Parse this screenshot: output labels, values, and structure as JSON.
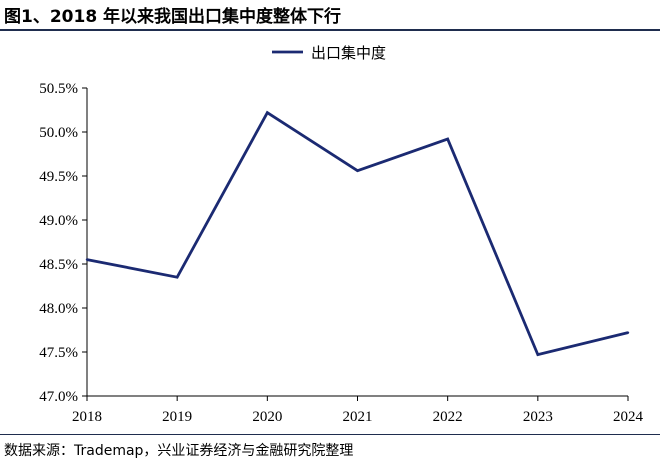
{
  "page": {
    "title": "图1、2018 年以来我国出口集中度整体下行",
    "source": "数据来源：Trademap，兴业证券经济与金融研究院整理"
  },
  "chart_data": {
    "type": "line",
    "x": [
      "2018",
      "2019",
      "2020",
      "2021",
      "2022",
      "2023",
      "2024"
    ],
    "series": [
      {
        "name": "出口集中度",
        "color": "#1b2a72",
        "values": [
          48.55,
          48.35,
          50.22,
          49.56,
          49.92,
          47.47,
          47.72
        ]
      }
    ],
    "ylim": [
      47.0,
      50.5
    ],
    "yticks": [
      "47.0%",
      "47.5%",
      "48.0%",
      "48.5%",
      "49.0%",
      "49.5%",
      "50.0%",
      "50.5%"
    ],
    "ytick_values": [
      47.0,
      47.5,
      48.0,
      48.5,
      49.0,
      49.5,
      50.0,
      50.5
    ],
    "legend_position": "top-center",
    "grid": false
  }
}
